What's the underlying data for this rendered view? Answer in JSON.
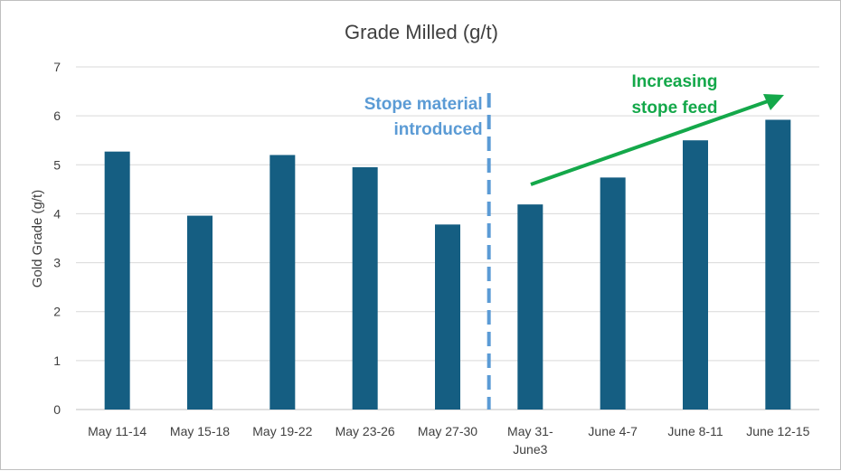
{
  "chart_data": {
    "type": "bar",
    "title": "Grade Milled (g/t)",
    "ylabel": "Gold Grade (g/t)",
    "xlabel": "",
    "ylim": [
      0,
      7
    ],
    "yticks": [
      "0",
      "1",
      "2",
      "3",
      "4",
      "5",
      "6",
      "7"
    ],
    "grid": true,
    "categories": [
      [
        "May 11-14"
      ],
      [
        "May 15-18"
      ],
      [
        "May 19-22"
      ],
      [
        "May 23-26"
      ],
      [
        "May 27-30"
      ],
      [
        "May 31-",
        "June3"
      ],
      [
        "June 4-7"
      ],
      [
        "June 8-11"
      ],
      [
        "June 12-15"
      ]
    ],
    "values": [
      5.27,
      3.96,
      5.2,
      4.95,
      3.78,
      4.19,
      4.74,
      5.5,
      5.92
    ],
    "bar_color": "#155e82",
    "annotations": [
      {
        "id": "stope",
        "lines": [
          "Stope material",
          "introduced"
        ],
        "color": "#5b9bd5",
        "marker": "dashed-vertical-line",
        "position_after_category_index": 4
      },
      {
        "id": "trend",
        "lines": [
          "Increasing",
          "stope feed"
        ],
        "color": "#14a84a",
        "marker": "arrow"
      }
    ]
  }
}
